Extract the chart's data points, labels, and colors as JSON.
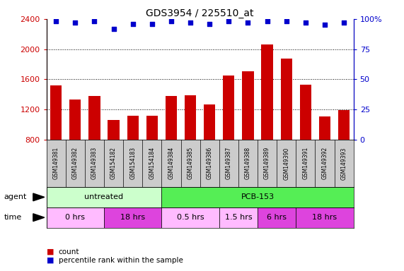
{
  "title": "GDS3954 / 225510_at",
  "samples": [
    "GSM149381",
    "GSM149382",
    "GSM149383",
    "GSM154182",
    "GSM154183",
    "GSM154184",
    "GSM149384",
    "GSM149385",
    "GSM149386",
    "GSM149387",
    "GSM149388",
    "GSM149389",
    "GSM149390",
    "GSM149391",
    "GSM149392",
    "GSM149393"
  ],
  "counts": [
    1520,
    1330,
    1380,
    1060,
    1120,
    1120,
    1380,
    1390,
    1270,
    1650,
    1710,
    2060,
    1870,
    1530,
    1110,
    1190
  ],
  "percentiles": [
    98,
    97,
    98,
    92,
    96,
    96,
    98,
    97,
    96,
    98,
    97,
    98,
    98,
    97,
    95,
    97
  ],
  "bar_color": "#cc0000",
  "dot_color": "#0000cc",
  "ylim_left": [
    800,
    2400
  ],
  "ylim_right": [
    0,
    100
  ],
  "yticks_left": [
    800,
    1200,
    1600,
    2000,
    2400
  ],
  "yticks_right": [
    0,
    25,
    50,
    75,
    100
  ],
  "grid_lines": [
    1200,
    1600,
    2000
  ],
  "agent_groups": [
    {
      "label": "untreated",
      "start": 0,
      "end": 6,
      "color": "#ccffcc"
    },
    {
      "label": "PCB-153",
      "start": 6,
      "end": 16,
      "color": "#55ee55"
    }
  ],
  "time_groups": [
    {
      "label": "0 hrs",
      "start": 0,
      "end": 3,
      "color": "#ffbbff"
    },
    {
      "label": "18 hrs",
      "start": 3,
      "end": 6,
      "color": "#dd44dd"
    },
    {
      "label": "0.5 hrs",
      "start": 6,
      "end": 9,
      "color": "#ffbbff"
    },
    {
      "label": "1.5 hrs",
      "start": 9,
      "end": 11,
      "color": "#ffbbff"
    },
    {
      "label": "6 hrs",
      "start": 11,
      "end": 13,
      "color": "#dd44dd"
    },
    {
      "label": "18 hrs",
      "start": 13,
      "end": 16,
      "color": "#dd44dd"
    }
  ],
  "legend_count_color": "#cc0000",
  "legend_dot_color": "#0000cc",
  "sample_label_bg": "#cccccc",
  "plot_bg_color": "#ffffff"
}
